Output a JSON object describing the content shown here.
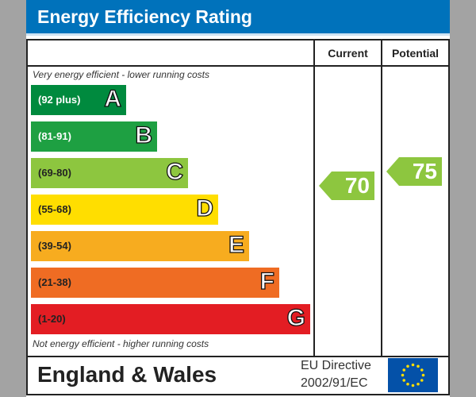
{
  "title": "Energy Efficiency Rating",
  "chart_data": {
    "type": "bar",
    "columns": [
      "Current",
      "Potential"
    ],
    "top_note": "Very energy efficient - lower running costs",
    "bottom_note": "Not energy efficient - higher running costs",
    "bands": [
      {
        "letter": "A",
        "range": "(92 plus)",
        "color": "#008a3e"
      },
      {
        "letter": "B",
        "range": "(81-91)",
        "color": "#1ea042"
      },
      {
        "letter": "C",
        "range": "(69-80)",
        "color": "#8dc63f"
      },
      {
        "letter": "D",
        "range": "(55-68)",
        "color": "#ffde00"
      },
      {
        "letter": "E",
        "range": "(39-54)",
        "color": "#f7ac1f"
      },
      {
        "letter": "F",
        "range": "(21-38)",
        "color": "#ef6c23"
      },
      {
        "letter": "G",
        "range": "(1-20)",
        "color": "#e31d23"
      }
    ],
    "current": {
      "value": "70",
      "band": "C",
      "color": "#8dc63f"
    },
    "potential": {
      "value": "75",
      "band": "C",
      "color": "#8dc63f"
    }
  },
  "footer": {
    "region": "England & Wales",
    "directive_line1": "EU Directive",
    "directive_line2": "2002/91/EC"
  }
}
